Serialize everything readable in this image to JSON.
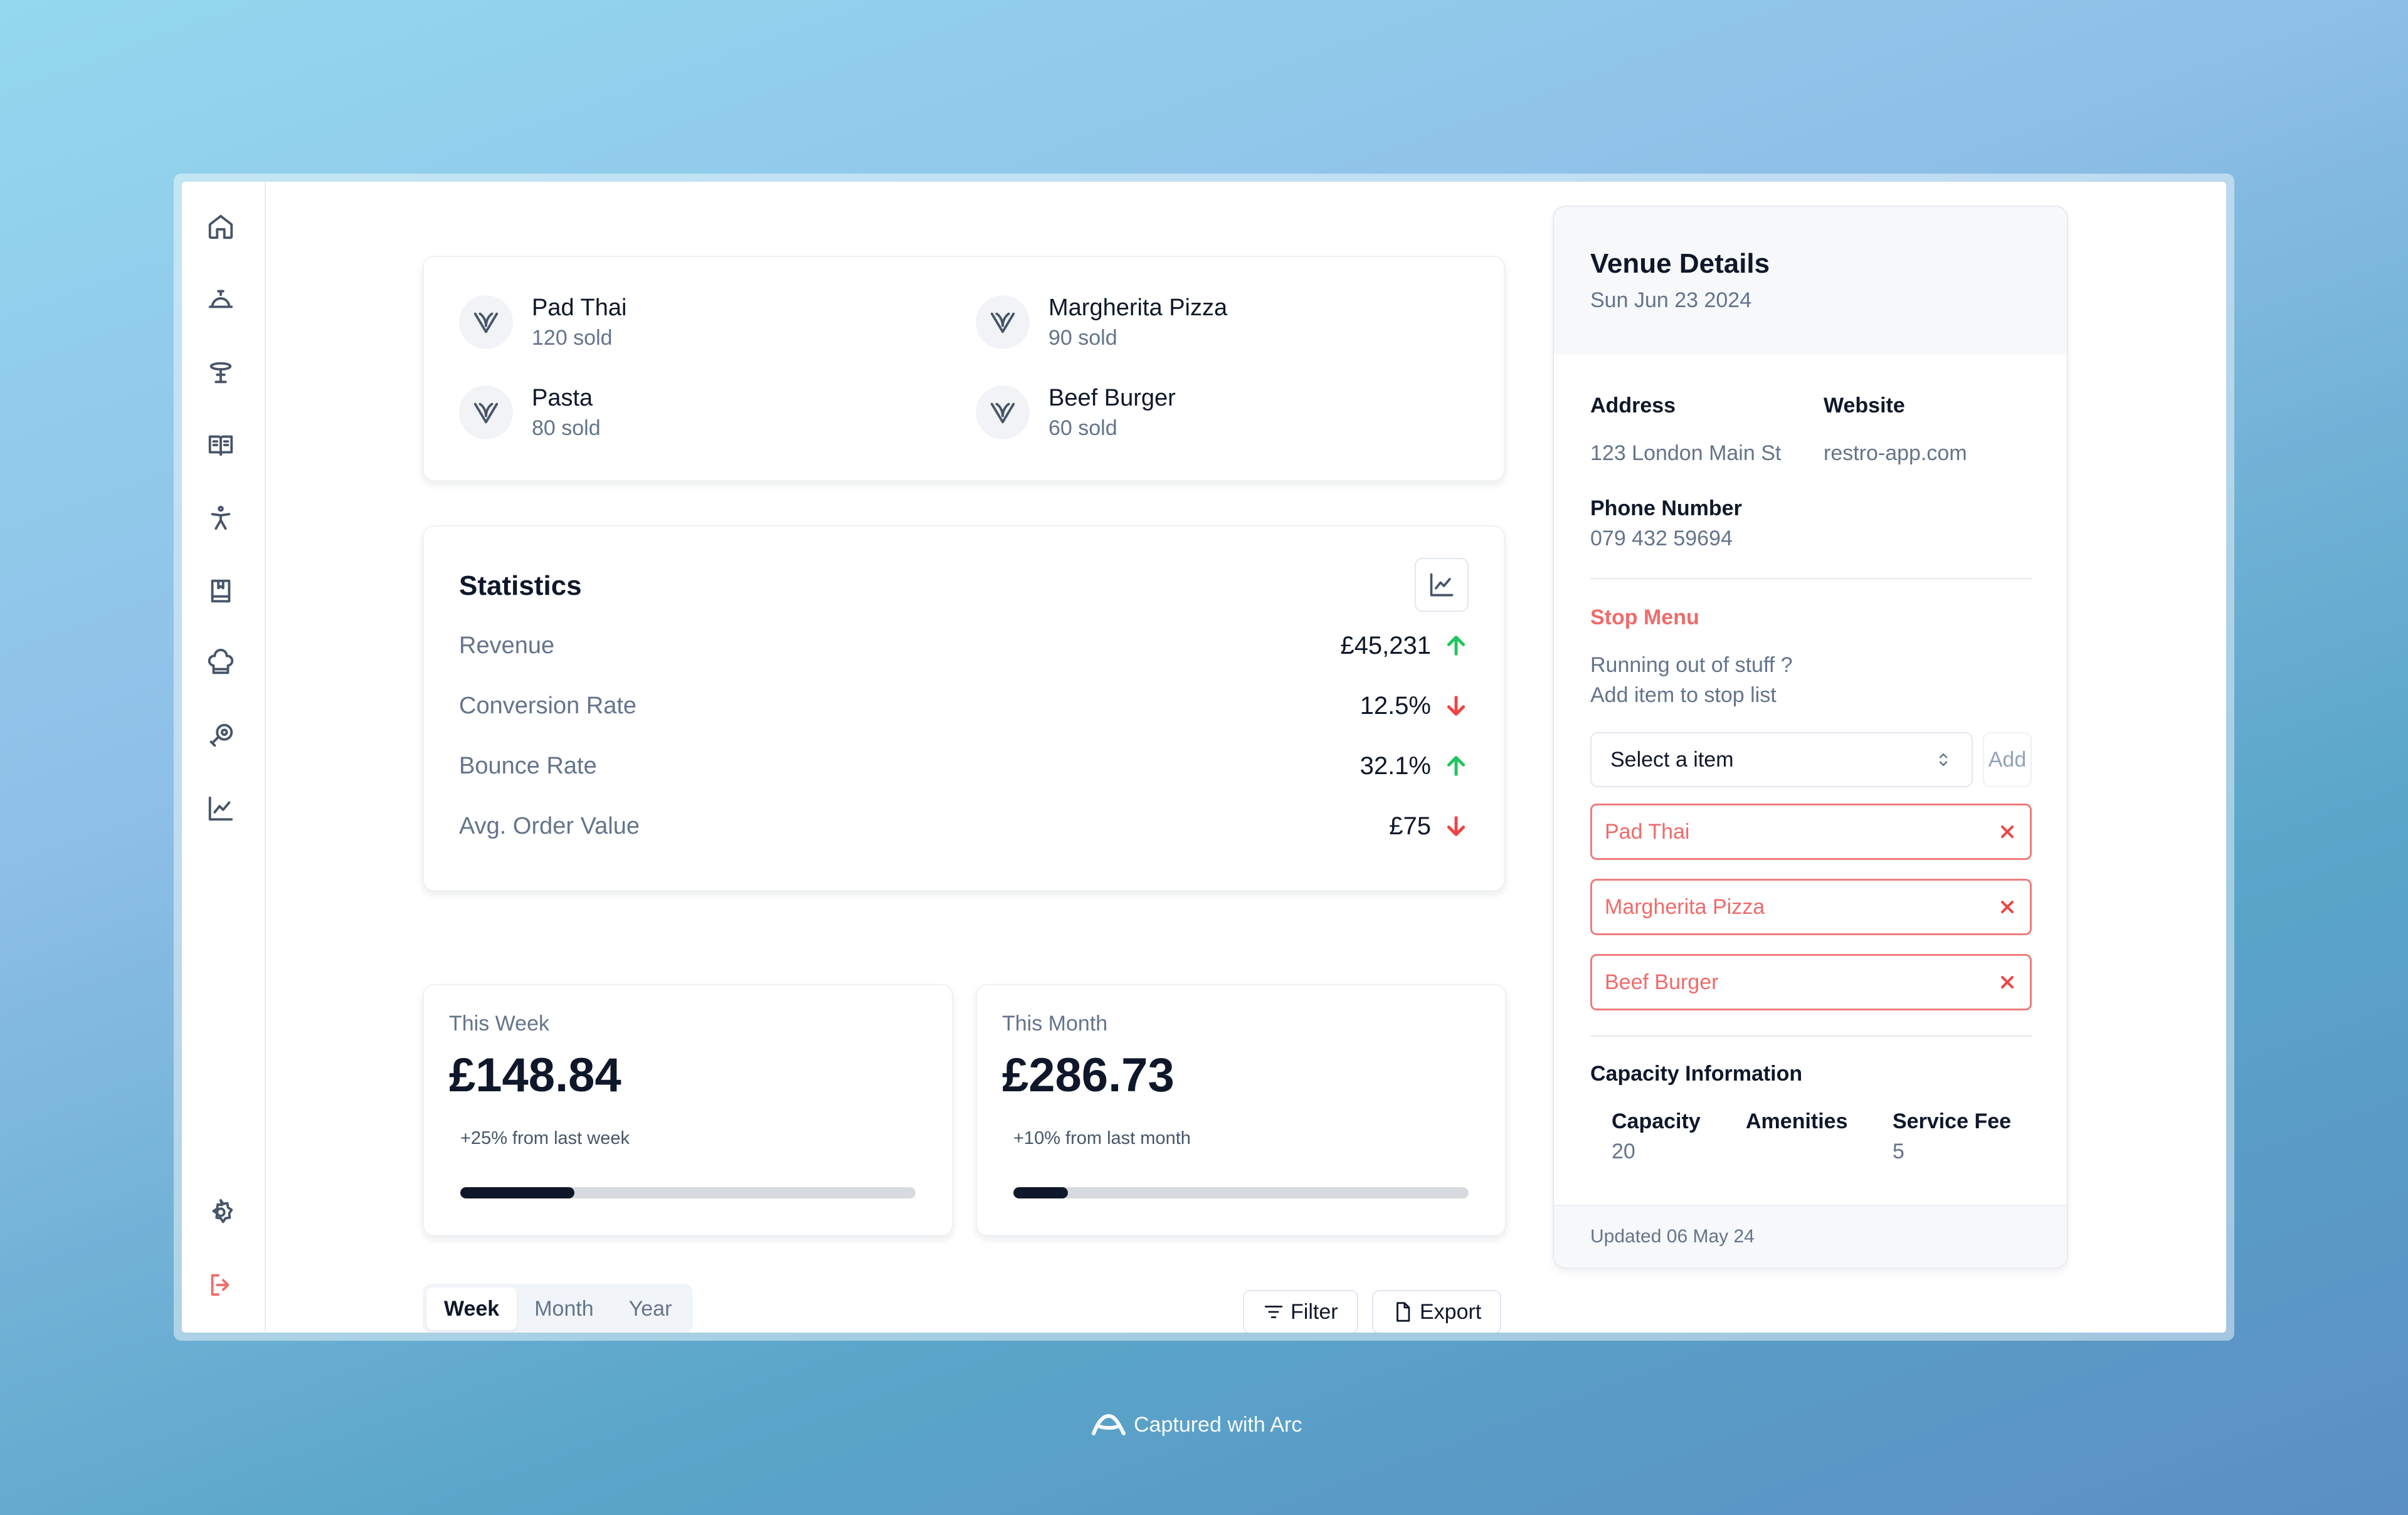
{
  "sidebar": {
    "icons": [
      "home-icon",
      "service-bell-icon",
      "table-icon",
      "menu-book-icon",
      "accessibility-icon",
      "bookmark-book-icon",
      "chef-hat-icon",
      "meat-icon",
      "chart-icon"
    ],
    "bottom_icons": [
      "settings-icon",
      "logout-icon"
    ]
  },
  "top_items": [
    {
      "name": "Pad Thai",
      "sold": "120 sold"
    },
    {
      "name": "Margherita Pizza",
      "sold": "90 sold"
    },
    {
      "name": "Pasta",
      "sold": "80 sold"
    },
    {
      "name": "Beef Burger",
      "sold": "60 sold"
    }
  ],
  "statistics": {
    "title": "Statistics",
    "rows": [
      {
        "label": "Revenue",
        "value": "£45,231",
        "trend": "up"
      },
      {
        "label": "Conversion Rate",
        "value": "12.5%",
        "trend": "down"
      },
      {
        "label": "Bounce Rate",
        "value": "32.1%",
        "trend": "up"
      },
      {
        "label": "Avg. Order Value",
        "value": "£75",
        "trend": "down"
      }
    ]
  },
  "summary": {
    "week": {
      "label": "This Week",
      "amount": "£148.84",
      "change": "+25% from last week",
      "progress": 0.25
    },
    "month": {
      "label": "This Month",
      "amount": "£286.73",
      "change": "+10% from last month",
      "progress": 0.12
    }
  },
  "period_tabs": [
    "Week",
    "Month",
    "Year"
  ],
  "toolbar": {
    "filter_label": "Filter",
    "export_label": "Export"
  },
  "venue": {
    "title": "Venue Details",
    "date": "Sun Jun 23 2024",
    "address_label": "Address",
    "address": "123 London Main St",
    "website_label": "Website",
    "website": "restro-app.com",
    "phone_label": "Phone Number",
    "phone": "079 432 59694",
    "stop_menu": {
      "title": "Stop Menu",
      "line1": "Running out of stuff ?",
      "line2": "Add item to stop list",
      "select_placeholder": "Select a item",
      "add_label": "Add",
      "items": [
        "Pad Thai",
        "Margherita Pizza",
        "Beef Burger"
      ]
    },
    "capacity": {
      "title": "Capacity Information",
      "capacity_label": "Capacity",
      "capacity_value": "20",
      "amenities_label": "Amenities",
      "service_fee_label": "Service Fee",
      "service_fee_value": "5"
    },
    "updated": "Updated 06 May 24"
  },
  "footer": {
    "captured": "Captured with Arc"
  },
  "colors": {
    "accent_red": "#ef6b6b",
    "trend_up": "#22c55e",
    "trend_down": "#ef4444",
    "dark": "#0f172a"
  }
}
